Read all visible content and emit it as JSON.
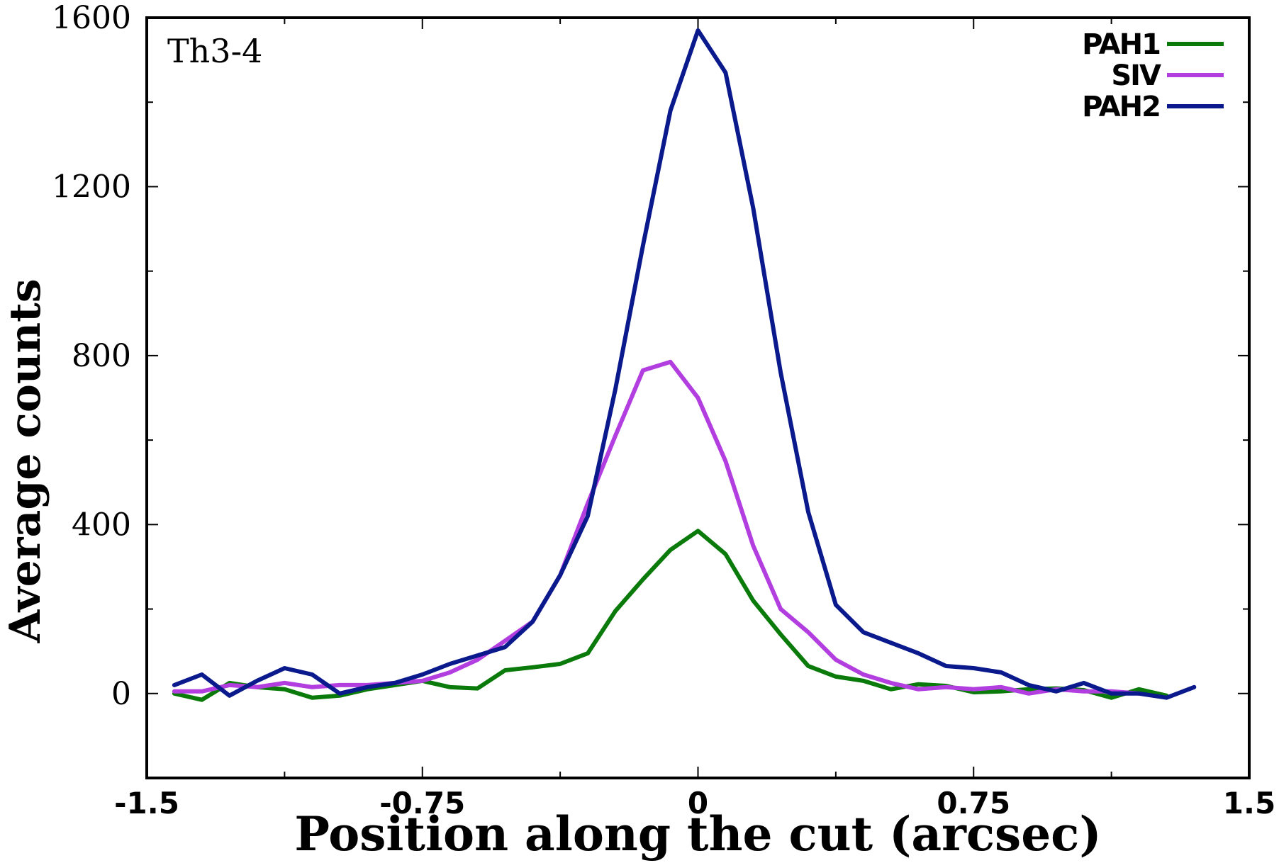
{
  "chart_data": {
    "type": "line",
    "title": "",
    "annotation": "Th3-4",
    "xlabel": "Position along the cut (arcsec)",
    "ylabel": "Average counts",
    "xlim": [
      -1.5,
      1.5
    ],
    "ylim": [
      -200,
      1600
    ],
    "xticks": [
      -1.5,
      -0.75,
      0,
      0.75,
      1.5
    ],
    "xtick_labels": [
      "-1.5",
      "-0.75",
      "0",
      "0.75",
      "1.5"
    ],
    "yticks": [
      0,
      400,
      800,
      1200,
      1600
    ],
    "ytick_labels": [
      "0",
      "400",
      "800",
      "1200",
      "1600"
    ],
    "yminor_ticks": [
      200,
      600,
      1000,
      1400
    ],
    "xminor_ticks": [
      -1.125,
      -0.375,
      0.375,
      1.125
    ],
    "grid": false,
    "legend_position": "top-right",
    "series": [
      {
        "name": "PAH1",
        "color": "#0a7a0a",
        "x": [
          -1.425,
          -1.35,
          -1.275,
          -1.2,
          -1.125,
          -1.05,
          -0.975,
          -0.9,
          -0.825,
          -0.75,
          -0.675,
          -0.6,
          -0.525,
          -0.45,
          -0.375,
          -0.3,
          -0.225,
          -0.15,
          -0.075,
          0,
          0.075,
          0.15,
          0.225,
          0.3,
          0.375,
          0.45,
          0.525,
          0.6,
          0.675,
          0.75,
          0.825,
          0.9,
          0.975,
          1.05,
          1.125,
          1.2,
          1.275
        ],
        "y": [
          0,
          -15,
          25,
          15,
          10,
          -10,
          -5,
          10,
          20,
          30,
          15,
          12,
          55,
          62,
          70,
          95,
          195,
          270,
          340,
          385,
          330,
          220,
          140,
          65,
          40,
          30,
          10,
          22,
          18,
          3,
          5,
          10,
          12,
          8,
          -10,
          10,
          -5
        ]
      },
      {
        "name": "SIV",
        "color": "#b23ee0",
        "x": [
          -1.425,
          -1.35,
          -1.275,
          -1.2,
          -1.125,
          -1.05,
          -0.975,
          -0.9,
          -0.825,
          -0.75,
          -0.675,
          -0.6,
          -0.525,
          -0.45,
          -0.375,
          -0.3,
          -0.225,
          -0.15,
          -0.075,
          0,
          0.075,
          0.15,
          0.225,
          0.3,
          0.375,
          0.45,
          0.525,
          0.6,
          0.675,
          0.75,
          0.825,
          0.9,
          0.975,
          1.05,
          1.125,
          1.2
        ],
        "y": [
          5,
          5,
          20,
          15,
          25,
          15,
          20,
          20,
          25,
          30,
          50,
          80,
          125,
          170,
          280,
          450,
          610,
          765,
          785,
          700,
          550,
          350,
          200,
          145,
          80,
          45,
          25,
          10,
          15,
          10,
          15,
          0,
          10,
          5,
          5,
          0
        ]
      },
      {
        "name": "PAH2",
        "color": "#0a1a8c",
        "x": [
          -1.425,
          -1.35,
          -1.275,
          -1.2,
          -1.125,
          -1.05,
          -0.975,
          -0.9,
          -0.825,
          -0.75,
          -0.675,
          -0.6,
          -0.525,
          -0.45,
          -0.375,
          -0.3,
          -0.225,
          -0.15,
          -0.075,
          0,
          0.075,
          0.15,
          0.225,
          0.3,
          0.375,
          0.45,
          0.525,
          0.6,
          0.675,
          0.75,
          0.825,
          0.9,
          0.975,
          1.05,
          1.125,
          1.2,
          1.275,
          1.35
        ],
        "y": [
          20,
          45,
          -5,
          30,
          60,
          45,
          0,
          15,
          25,
          45,
          70,
          90,
          110,
          170,
          280,
          420,
          720,
          1060,
          1380,
          1570,
          1470,
          1150,
          760,
          430,
          210,
          145,
          120,
          95,
          65,
          60,
          50,
          20,
          5,
          25,
          0,
          0,
          -10,
          15
        ]
      }
    ]
  }
}
